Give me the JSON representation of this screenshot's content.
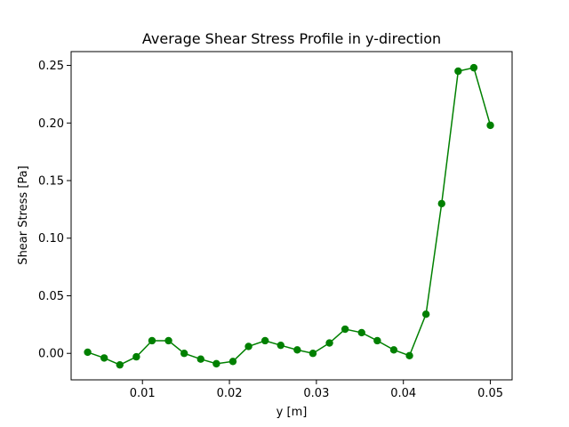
{
  "chart_data": {
    "type": "line",
    "title": "Average Shear Stress Profile in y-direction",
    "xlabel": "y [m]",
    "ylabel": "Shear Stress [Pa]",
    "xlim": [
      0.0018,
      0.0525
    ],
    "ylim": [
      -0.023,
      0.262
    ],
    "xticks": [
      0.01,
      0.02,
      0.03,
      0.04,
      0.05
    ],
    "xtick_labels": [
      "0.01",
      "0.02",
      "0.03",
      "0.04",
      "0.05"
    ],
    "yticks": [
      0.0,
      0.05,
      0.1,
      0.15,
      0.2,
      0.25
    ],
    "ytick_labels": [
      "0.00",
      "0.05",
      "0.10",
      "0.15",
      "0.20",
      "0.25"
    ],
    "grid": false,
    "color": "#008000",
    "marker": "circle",
    "series": [
      {
        "x": [
          0.0037,
          0.0056,
          0.0074,
          0.0093,
          0.0111,
          0.013,
          0.0148,
          0.0167,
          0.0185,
          0.0204,
          0.0222,
          0.0241,
          0.0259,
          0.0278,
          0.0296,
          0.0315,
          0.0333,
          0.0352,
          0.037,
          0.0389,
          0.0407,
          0.0426,
          0.0444,
          0.0463,
          0.0481,
          0.05
        ],
        "y": [
          0.001,
          -0.004,
          -0.01,
          -0.003,
          0.011,
          0.011,
          0.0,
          -0.005,
          -0.009,
          -0.007,
          0.006,
          0.011,
          0.007,
          0.003,
          0.0,
          0.009,
          0.021,
          0.018,
          0.011,
          0.003,
          -0.002,
          0.034,
          0.13,
          0.245,
          0.248,
          0.198
        ]
      }
    ]
  }
}
